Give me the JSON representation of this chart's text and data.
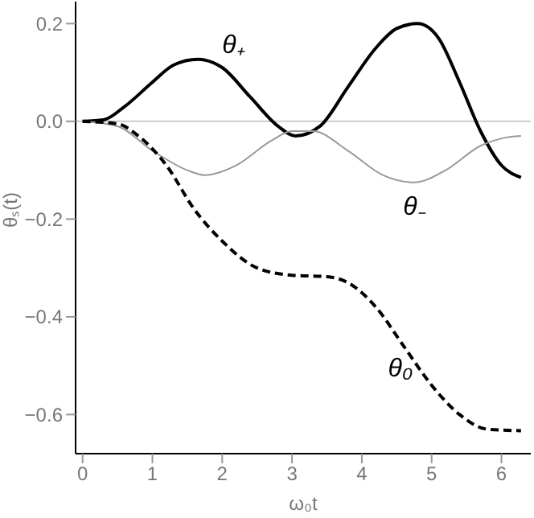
{
  "chart_data": {
    "type": "line",
    "xlabel": "ω₀t",
    "ylabel": "θₛ(t)",
    "xlim": [
      -0.1,
      6.42
    ],
    "ylim": [
      -0.68,
      0.245
    ],
    "xticks": [
      0,
      1,
      2,
      3,
      4,
      5,
      6
    ],
    "yticks": [
      {
        "value": 0.2,
        "label": "0.2"
      },
      {
        "value": 0,
        "label": "0.0"
      },
      {
        "value": -0.2,
        "label": "−0.2"
      },
      {
        "value": -0.4,
        "label": "−0.4"
      },
      {
        "value": -0.6,
        "label": "−0.6"
      }
    ],
    "grid": false,
    "legend": false,
    "marker": "none",
    "ref_lines": [
      {
        "axis": "y",
        "value": 0,
        "color": "#cccccc"
      }
    ],
    "series": [
      {
        "name": "θ₊",
        "color": "#000000",
        "line_style": "solid",
        "x": [
          0,
          0.3,
          0.6,
          1.0,
          1.3,
          1.65,
          2.0,
          2.4,
          2.8,
          3.05,
          3.4,
          3.8,
          4.2,
          4.5,
          4.8,
          5.1,
          5.4,
          5.7,
          6.0,
          6.28
        ],
        "values": [
          0,
          0.003,
          0.03,
          0.08,
          0.115,
          0.127,
          0.11,
          0.05,
          -0.01,
          -0.03,
          -0.01,
          0.07,
          0.15,
          0.19,
          0.2,
          0.17,
          0.08,
          -0.02,
          -0.09,
          -0.115
        ]
      },
      {
        "name": "θ₋",
        "color": "#999999",
        "line_style": "solid",
        "x": [
          0,
          0.5,
          1.0,
          1.5,
          1.75,
          2.2,
          2.7,
          3.0,
          3.3,
          3.8,
          4.3,
          4.75,
          5.2,
          5.7,
          6.0,
          6.28
        ],
        "values": [
          0,
          -0.01,
          -0.06,
          -0.1,
          -0.11,
          -0.09,
          -0.04,
          -0.02,
          -0.02,
          -0.06,
          -0.11,
          -0.125,
          -0.1,
          -0.05,
          -0.035,
          -0.03
        ]
      },
      {
        "name": "θ₀",
        "color": "#000000",
        "line_style": "dashed",
        "x": [
          0,
          0.5,
          0.8,
          1.2,
          1.6,
          2.0,
          2.5,
          3.0,
          3.5,
          3.8,
          4.2,
          4.6,
          5.0,
          5.4,
          5.8,
          6.28
        ],
        "values": [
          0,
          -0.005,
          -0.03,
          -0.09,
          -0.18,
          -0.245,
          -0.3,
          -0.315,
          -0.318,
          -0.33,
          -0.38,
          -0.46,
          -0.54,
          -0.6,
          -0.63,
          -0.633
        ]
      }
    ]
  }
}
